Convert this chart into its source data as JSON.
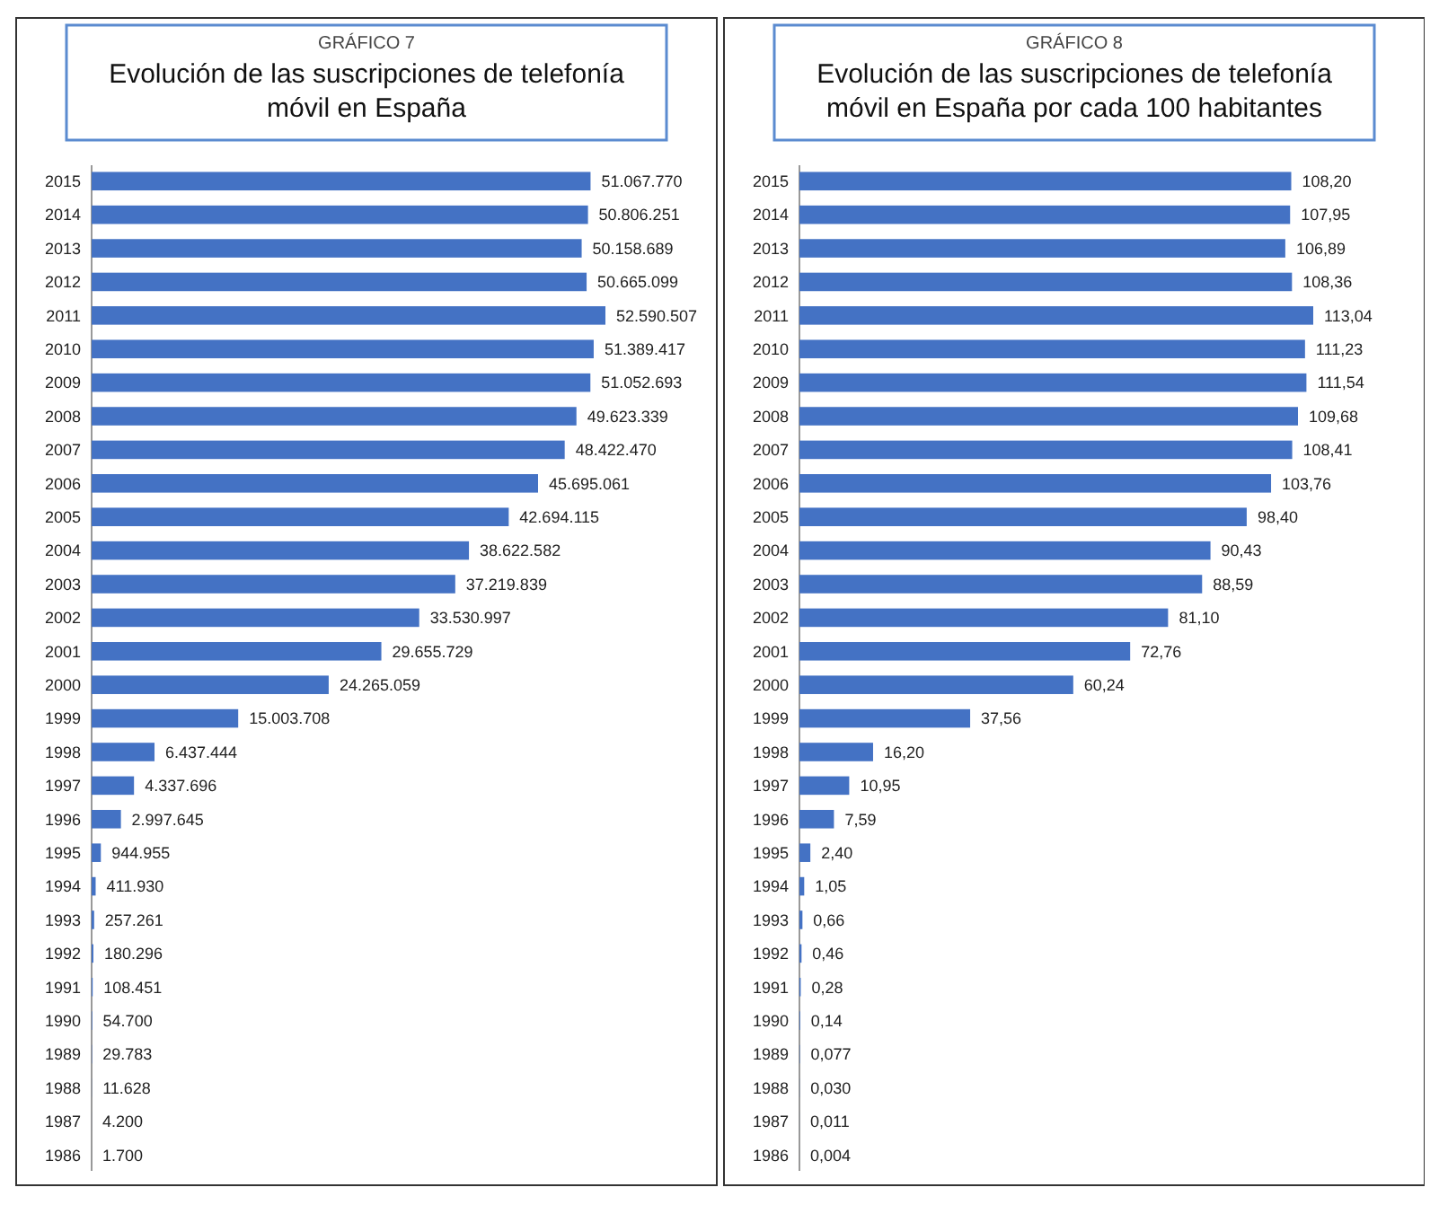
{
  "chart_data": [
    {
      "type": "bar",
      "orientation": "horizontal",
      "subtitle": "GRÁFICO 7",
      "title": "Evolución de las suscripciones de telefonía móvil en España",
      "categories": [
        "2015",
        "2014",
        "2013",
        "2012",
        "2011",
        "2010",
        "2009",
        "2008",
        "2007",
        "2006",
        "2005",
        "2004",
        "2003",
        "2002",
        "2001",
        "2000",
        "1999",
        "1998",
        "1997",
        "1996",
        "1995",
        "1994",
        "1993",
        "1992",
        "1991",
        "1990",
        "1989",
        "1988",
        "1987",
        "1986"
      ],
      "color": "#4472c4",
      "values": [
        51067770,
        50806251,
        50158689,
        50665099,
        52590507,
        51389417,
        51052693,
        49623339,
        48422470,
        45695061,
        42694115,
        38622582,
        37219839,
        33530997,
        29655729,
        24265059,
        15003708,
        6437444,
        4337696,
        2997645,
        944955,
        411930,
        257261,
        180296,
        108451,
        54700,
        29783,
        11628,
        4200,
        1700
      ],
      "value_labels": [
        "51.067.770",
        "50.806.251",
        "50.158.689",
        "50.665.099",
        "52.590.507",
        "51.389.417",
        "51.052.693",
        "49.623.339",
        "48.422.470",
        "45.695.061",
        "42.694.115",
        "38.622.582",
        "37.219.839",
        "33.530.997",
        "29.655.729",
        "24.265.059",
        "15.003.708",
        "6.437.444",
        "4.337.696",
        "2.997.645",
        "944.955",
        "411.930",
        "257.261",
        "180.296",
        "108.451",
        "54.700",
        "29.783",
        "11.628",
        "4.200",
        "1.700"
      ]
    },
    {
      "type": "bar",
      "orientation": "horizontal",
      "subtitle": "GRÁFICO 8",
      "title": "Evolución de las suscripciones de telefonía móvil en España por cada 100 habitantes",
      "categories": [
        "2015",
        "2014",
        "2013",
        "2012",
        "2011",
        "2010",
        "2009",
        "2008",
        "2007",
        "2006",
        "2005",
        "2004",
        "2003",
        "2002",
        "2001",
        "2000",
        "1999",
        "1998",
        "1997",
        "1996",
        "1995",
        "1994",
        "1993",
        "1992",
        "1991",
        "1990",
        "1989",
        "1988",
        "1987",
        "1986"
      ],
      "color": "#4472c4",
      "values": [
        108.2,
        107.95,
        106.89,
        108.36,
        113.04,
        111.23,
        111.54,
        109.68,
        108.41,
        103.76,
        98.4,
        90.43,
        88.59,
        81.1,
        72.76,
        60.24,
        37.56,
        16.2,
        10.95,
        7.59,
        2.4,
        1.05,
        0.66,
        0.46,
        0.28,
        0.14,
        0.077,
        0.03,
        0.011,
        0.004
      ],
      "value_labels": [
        "108,20",
        "107,95",
        "106,89",
        "108,36",
        "113,04",
        "111,23",
        "111,54",
        "109,68",
        "108,41",
        "103,76",
        "98,40",
        "90,43",
        "88,59",
        "81,10",
        "72,76",
        "60,24",
        "37,56",
        "16,20",
        "10,95",
        "7,59",
        "2,40",
        "1,05",
        "0,66",
        "0,46",
        "0,28",
        "0,14",
        "0,077",
        "0,030",
        "0,011",
        "0,004"
      ]
    }
  ]
}
